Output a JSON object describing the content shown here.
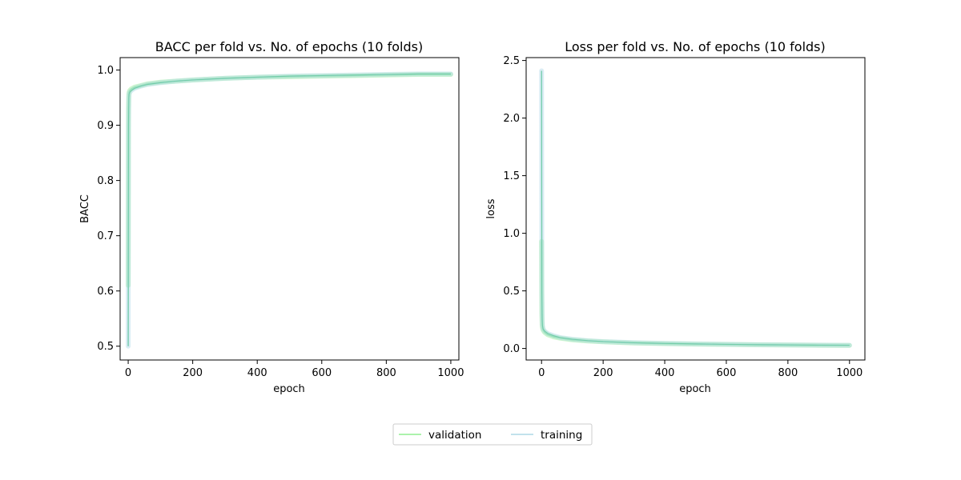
{
  "chart_data": [
    {
      "type": "line",
      "title": "BACC per fold vs. No. of epochs (10 folds)",
      "xlabel": "epoch",
      "ylabel": "BACC",
      "xlim": [
        -25,
        1025
      ],
      "ylim": [
        0.475,
        1.0225
      ],
      "xticks": [
        "0",
        "200",
        "400",
        "600",
        "800",
        "1000"
      ],
      "yticks": [
        "0.5",
        "0.6",
        "0.7",
        "0.8",
        "0.9",
        "1.0"
      ],
      "grid": false,
      "series": [
        {
          "name": "validation",
          "color": "#90ee90",
          "x": [
            0,
            1,
            2,
            3,
            5,
            10,
            20,
            40,
            60,
            100,
            150,
            200,
            300,
            400,
            500,
            600,
            700,
            800,
            900,
            1000
          ],
          "y": [
            0.61,
            0.93,
            0.955,
            0.96,
            0.963,
            0.966,
            0.969,
            0.972,
            0.975,
            0.978,
            0.98,
            0.982,
            0.985,
            0.987,
            0.988,
            0.989,
            0.99,
            0.991,
            0.992,
            0.992
          ]
        },
        {
          "name": "training",
          "color": "#add8e6",
          "x": [
            0,
            1,
            2,
            3,
            5,
            10,
            20,
            40,
            60,
            100,
            150,
            200,
            300,
            400,
            500,
            600,
            700,
            800,
            900,
            1000
          ],
          "y": [
            0.5,
            0.9,
            0.95,
            0.957,
            0.96,
            0.963,
            0.967,
            0.971,
            0.974,
            0.977,
            0.98,
            0.982,
            0.985,
            0.987,
            0.989,
            0.99,
            0.991,
            0.992,
            0.993,
            0.993
          ]
        }
      ]
    },
    {
      "type": "line",
      "title": "Loss per fold vs. No. of epochs (10 folds)",
      "xlabel": "epoch",
      "ylabel": "loss",
      "xlim": [
        -50,
        1050
      ],
      "ylim": [
        -0.1,
        2.525
      ],
      "xticks": [
        "0",
        "200",
        "400",
        "600",
        "800",
        "1000"
      ],
      "yticks": [
        "0.0",
        "0.5",
        "1.0",
        "1.5",
        "2.0",
        "2.5"
      ],
      "grid": false,
      "series": [
        {
          "name": "validation",
          "color": "#90ee90",
          "x": [
            0,
            1,
            2,
            3,
            5,
            10,
            20,
            40,
            60,
            100,
            150,
            200,
            300,
            400,
            500,
            600,
            700,
            800,
            900,
            1000
          ],
          "y": [
            0.93,
            0.3,
            0.2,
            0.18,
            0.16,
            0.14,
            0.12,
            0.1,
            0.09,
            0.075,
            0.065,
            0.058,
            0.048,
            0.042,
            0.038,
            0.035,
            0.032,
            0.03,
            0.028,
            0.027
          ]
        },
        {
          "name": "training",
          "color": "#add8e6",
          "x": [
            0,
            1,
            2,
            3,
            5,
            10,
            20,
            40,
            60,
            100,
            150,
            200,
            300,
            400,
            500,
            600,
            700,
            800,
            900,
            1000
          ],
          "y": [
            2.41,
            0.5,
            0.25,
            0.2,
            0.17,
            0.15,
            0.13,
            0.11,
            0.095,
            0.08,
            0.068,
            0.06,
            0.05,
            0.044,
            0.04,
            0.036,
            0.033,
            0.031,
            0.029,
            0.028
          ]
        }
      ]
    }
  ],
  "legend": {
    "placement": "bottom-center",
    "items": [
      {
        "label": "validation",
        "color": "#90ee90"
      },
      {
        "label": "training",
        "color": "#add8e6"
      }
    ]
  }
}
